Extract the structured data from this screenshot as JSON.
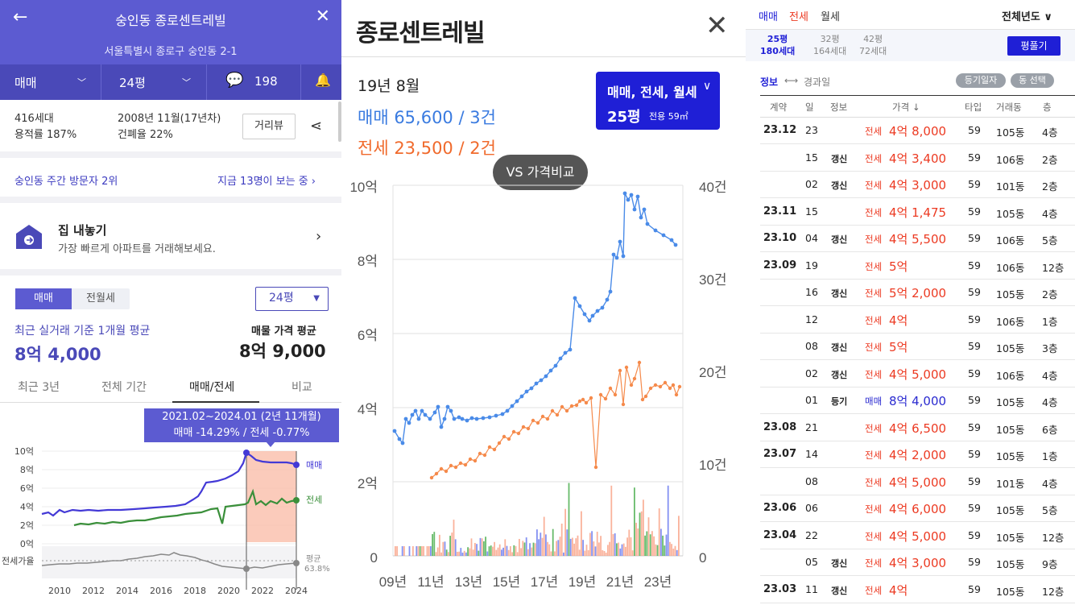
{
  "left": {
    "title": "숭인동 종로센트레빌",
    "address": "서울특별시 종로구 숭인동 2-1",
    "filter": {
      "trade": "매매",
      "size": "24평",
      "comments": "198"
    },
    "stats": {
      "households": "416세대",
      "far": "용적률 187%",
      "built": "2008년 11월(17년차)",
      "bcr": "건폐율 22%"
    },
    "street_view": "거리뷰",
    "visitors": {
      "rank": "숭인동 주간 방문자 2위",
      "now": "지금 13명이 보는 중"
    },
    "sell": {
      "title": "집 내놓기",
      "desc": "가장 빠르게 아파트를 거래해보세요."
    },
    "toggle": {
      "a": "매매",
      "b": "전월세"
    },
    "size_select": "24평",
    "avg_label": "최근 실거래 기준 1개월 평균",
    "avg_value": "8억 4,000",
    "listing_label": "매물 가격 평균",
    "listing_value": "8억 9,000",
    "tabs": [
      "최근 3년",
      "전체 기간",
      "매매/전세",
      "비교"
    ],
    "tooltip": {
      "line1": "2021.02~2024.01 (2년 11개월)",
      "line2": "매매 -14.29%  /  전세 -0.77%"
    },
    "y_ticks": [
      "10억",
      "8억",
      "6억",
      "4억",
      "2억",
      "0억"
    ],
    "x_ticks": [
      "2010",
      "2012",
      "2014",
      "2016",
      "2018",
      "2020",
      "2022",
      "2024"
    ],
    "legend": {
      "sale": "매매",
      "jeonse": "전세"
    },
    "ratio_label": "전세가율",
    "ratio_avg": "평균",
    "ratio_value": "63.8%"
  },
  "mid": {
    "title": "종로센트레빌",
    "month": "19년 8월",
    "sale": "매매 65,600 / 3건",
    "jeonse": "전세 23,500 / 2건",
    "filter": "매매, 전세, 월세",
    "size": "25평",
    "size_detail": "전용 59㎡",
    "vs": "VS 가격비교",
    "y_left": [
      "10억",
      "8억",
      "6억",
      "4억",
      "2억",
      "0"
    ],
    "y_right": [
      "40건",
      "30건",
      "20건",
      "10건",
      "0"
    ],
    "x_ticks": [
      "09년",
      "11년",
      "13년",
      "15년",
      "17년",
      "19년",
      "21년",
      "23년"
    ]
  },
  "right": {
    "tabs": [
      "매매",
      "전세",
      "월세"
    ],
    "year_filter": "전체년도",
    "sizes": [
      {
        "label": "25평",
        "units": "180세대"
      },
      {
        "label": "32평",
        "units": "164세대"
      },
      {
        "label": "42평",
        "units": "72세대"
      }
    ],
    "plan_btn": "평풀기",
    "info_toggle": "정보",
    "elapsed": "경과일",
    "badge1": "등기일자",
    "badge2": "동 선택",
    "headers": [
      "계약",
      "일",
      "정보",
      "가격 ↓",
      "타입",
      "거래동",
      "층"
    ],
    "rows": [
      {
        "ym": "23.12",
        "d": "23",
        "info": "",
        "kind": "전세",
        "price": "4억 8,000",
        "type": "59",
        "dong": "105동",
        "floor": "4층"
      },
      {
        "ym": "",
        "d": "15",
        "info": "갱신",
        "kind": "전세",
        "price": "4억 3,400",
        "type": "59",
        "dong": "106동",
        "floor": "2층"
      },
      {
        "ym": "",
        "d": "02",
        "info": "갱신",
        "kind": "전세",
        "price": "4억 3,000",
        "type": "59",
        "dong": "101동",
        "floor": "2층"
      },
      {
        "ym": "23.11",
        "d": "15",
        "info": "",
        "kind": "전세",
        "price": "4억 1,475",
        "type": "59",
        "dong": "105동",
        "floor": "4층"
      },
      {
        "ym": "23.10",
        "d": "04",
        "info": "갱신",
        "kind": "전세",
        "price": "4억 5,500",
        "type": "59",
        "dong": "106동",
        "floor": "5층"
      },
      {
        "ym": "23.09",
        "d": "19",
        "info": "",
        "kind": "전세",
        "price": "5억",
        "type": "59",
        "dong": "106동",
        "floor": "12층"
      },
      {
        "ym": "",
        "d": "16",
        "info": "갱신",
        "kind": "전세",
        "price": "5억 2,000",
        "type": "59",
        "dong": "105동",
        "floor": "2층"
      },
      {
        "ym": "",
        "d": "12",
        "info": "",
        "kind": "전세",
        "price": "4억",
        "type": "59",
        "dong": "106동",
        "floor": "1층"
      },
      {
        "ym": "",
        "d": "08",
        "info": "갱신",
        "kind": "전세",
        "price": "5억",
        "type": "59",
        "dong": "105동",
        "floor": "3층"
      },
      {
        "ym": "",
        "d": "02",
        "info": "갱신",
        "kind": "전세",
        "price": "4억 5,000",
        "type": "59",
        "dong": "106동",
        "floor": "4층"
      },
      {
        "ym": "",
        "d": "01",
        "info": "등기",
        "kind": "매매",
        "price": "8억 4,000",
        "type": "59",
        "dong": "105동",
        "floor": "4층"
      },
      {
        "ym": "23.08",
        "d": "21",
        "info": "",
        "kind": "전세",
        "price": "4억 6,500",
        "type": "59",
        "dong": "105동",
        "floor": "6층"
      },
      {
        "ym": "23.07",
        "d": "14",
        "info": "",
        "kind": "전세",
        "price": "4억 2,000",
        "type": "59",
        "dong": "105동",
        "floor": "1층"
      },
      {
        "ym": "",
        "d": "08",
        "info": "",
        "kind": "전세",
        "price": "4억 5,000",
        "type": "59",
        "dong": "101동",
        "floor": "4층"
      },
      {
        "ym": "23.06",
        "d": "06",
        "info": "",
        "kind": "전세",
        "price": "4억 6,000",
        "type": "59",
        "dong": "105동",
        "floor": "5층"
      },
      {
        "ym": "23.04",
        "d": "22",
        "info": "",
        "kind": "전세",
        "price": "4억 5,000",
        "type": "59",
        "dong": "105동",
        "floor": "12층"
      },
      {
        "ym": "",
        "d": "05",
        "info": "갱신",
        "kind": "전세",
        "price": "4억 3,000",
        "type": "59",
        "dong": "105동",
        "floor": "9층"
      },
      {
        "ym": "23.03",
        "d": "11",
        "info": "갱신",
        "kind": "전세",
        "price": "4억",
        "type": "59",
        "dong": "105동",
        "floor": "12층"
      }
    ]
  },
  "colors": {
    "purple": "#5c5bd1",
    "blue": "#2a2ad0",
    "red": "#ec3a22",
    "green": "#3a8f3a",
    "orange": "#f58a4b",
    "salebar": "#1f1fd6"
  }
}
